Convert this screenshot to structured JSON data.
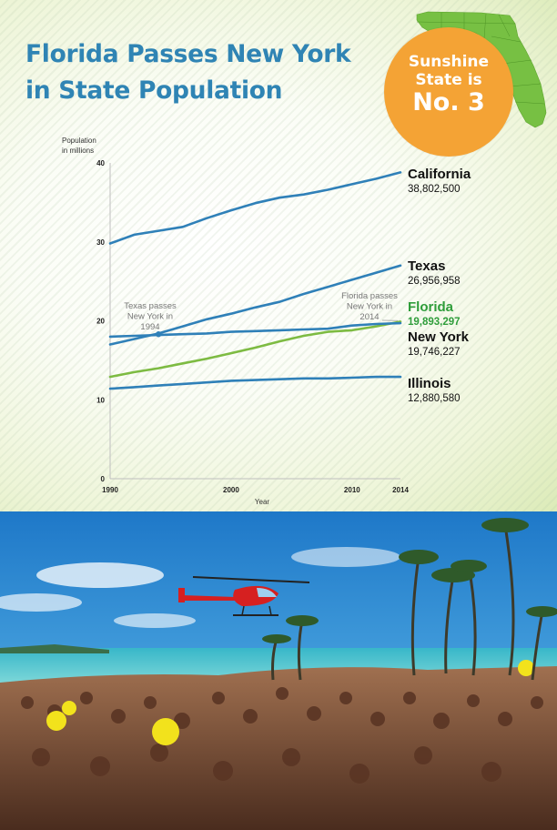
{
  "header": {
    "title": "Florida Passes New York in State Population",
    "badge": {
      "line1": "Sunshine State is",
      "line2": "No. 3"
    }
  },
  "colors": {
    "title": "#2f84b4",
    "line": "#2f80b8",
    "florida": "#7dbb42",
    "florida_label": "#2f9d3a",
    "badge": "#f4a335",
    "map": "#77c043"
  },
  "icons": {
    "map": "florida-map-icon",
    "photo": "beach-party-photo"
  },
  "chart_data": {
    "type": "line",
    "ylabel": "Population in millions",
    "xlabel": "Year",
    "xlim": [
      1990,
      2014
    ],
    "ylim": [
      0,
      40
    ],
    "x_ticks": [
      "1990",
      "2000",
      "2010",
      "2014"
    ],
    "y_ticks": [
      "0",
      "10",
      "20",
      "30",
      "40"
    ],
    "x": [
      1990,
      1992,
      1994,
      1996,
      1998,
      2000,
      2002,
      2004,
      2006,
      2008,
      2010,
      2012,
      2014
    ],
    "series": [
      {
        "name": "California",
        "value_label": "38,802,500",
        "values": [
          29.8,
          30.9,
          31.4,
          31.9,
          33.0,
          34.0,
          34.9,
          35.6,
          36.0,
          36.6,
          37.3,
          38.0,
          38.8
        ]
      },
      {
        "name": "Texas",
        "value_label": "26,956,958",
        "values": [
          17.0,
          17.7,
          18.4,
          19.3,
          20.2,
          20.9,
          21.7,
          22.4,
          23.4,
          24.3,
          25.2,
          26.1,
          27.0
        ]
      },
      {
        "name": "Florida",
        "value_label": "19,893,297",
        "values": [
          12.9,
          13.5,
          14.0,
          14.6,
          15.2,
          15.9,
          16.6,
          17.4,
          18.1,
          18.6,
          18.8,
          19.3,
          19.9
        ]
      },
      {
        "name": "New York",
        "value_label": "19,746,227",
        "values": [
          18.0,
          18.1,
          18.2,
          18.3,
          18.4,
          18.6,
          18.7,
          18.8,
          18.9,
          19.0,
          19.4,
          19.6,
          19.7
        ]
      },
      {
        "name": "Illinois",
        "value_label": "12,880,580",
        "values": [
          11.4,
          11.6,
          11.8,
          12.0,
          12.2,
          12.4,
          12.5,
          12.6,
          12.7,
          12.7,
          12.8,
          12.9,
          12.9
        ]
      }
    ],
    "annotations": [
      {
        "text_lines": [
          "Texas passes",
          "New York in",
          "1994"
        ],
        "year": 1994,
        "value": 18.3
      },
      {
        "text_lines": [
          "Florida passes",
          "New York in",
          "2014"
        ],
        "year": 2014,
        "value": 19.8
      }
    ],
    "grid": false,
    "legend": "inline labels at right end of lines"
  }
}
